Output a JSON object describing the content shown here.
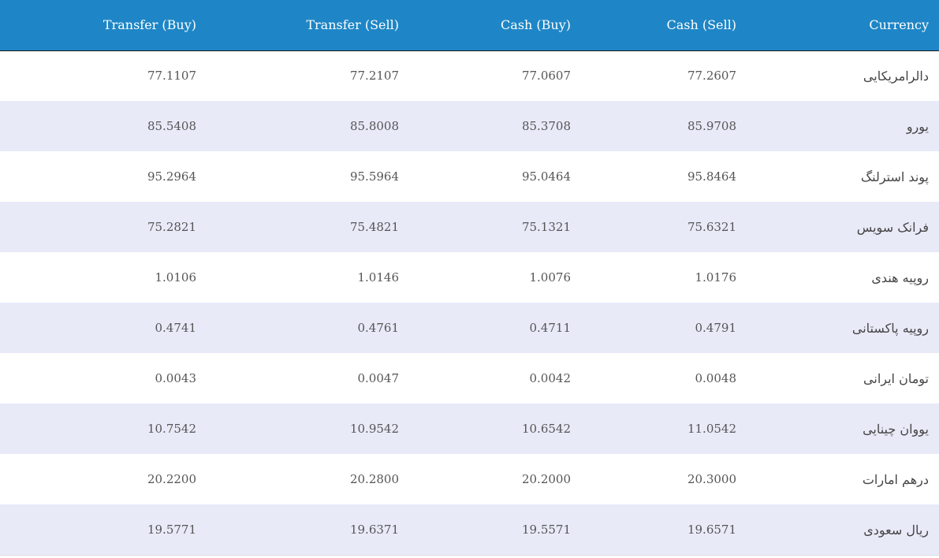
{
  "table": {
    "headers": {
      "transfer_buy": "Transfer (Buy)",
      "transfer_sell": "Transfer (Sell)",
      "cash_buy": "Cash (Buy)",
      "cash_sell": "Cash (Sell)",
      "currency": "Currency"
    },
    "colors": {
      "header_bg": "#1e86c6",
      "header_text": "#ffffff",
      "stripe_bg": "#e8eaf8"
    },
    "rows": [
      {
        "transfer_buy": "77.1107",
        "transfer_sell": "77.2107",
        "cash_buy": "77.0607",
        "cash_sell": "77.2607",
        "currency": "دالرامریکایی"
      },
      {
        "transfer_buy": "85.5408",
        "transfer_sell": "85.8008",
        "cash_buy": "85.3708",
        "cash_sell": "85.9708",
        "currency": "یورو"
      },
      {
        "transfer_buy": "95.2964",
        "transfer_sell": "95.5964",
        "cash_buy": "95.0464",
        "cash_sell": "95.8464",
        "currency": "پوند استرلنگ"
      },
      {
        "transfer_buy": "75.2821",
        "transfer_sell": "75.4821",
        "cash_buy": "75.1321",
        "cash_sell": "75.6321",
        "currency": "فرانک سویس"
      },
      {
        "transfer_buy": "1.0106",
        "transfer_sell": "1.0146",
        "cash_buy": "1.0076",
        "cash_sell": "1.0176",
        "currency": "روپیه هندی"
      },
      {
        "transfer_buy": "0.4741",
        "transfer_sell": "0.4761",
        "cash_buy": "0.4711",
        "cash_sell": "0.4791",
        "currency": "روپیه پاکستانی"
      },
      {
        "transfer_buy": "0.0043",
        "transfer_sell": "0.0047",
        "cash_buy": "0.0042",
        "cash_sell": "0.0048",
        "currency": "تومان ایرانی"
      },
      {
        "transfer_buy": "10.7542",
        "transfer_sell": "10.9542",
        "cash_buy": "10.6542",
        "cash_sell": "11.0542",
        "currency": "یووان چینایی"
      },
      {
        "transfer_buy": "20.2200",
        "transfer_sell": "20.2800",
        "cash_buy": "20.2000",
        "cash_sell": "20.3000",
        "currency": "درهم امارات"
      },
      {
        "transfer_buy": "19.5771",
        "transfer_sell": "19.6371",
        "cash_buy": "19.5571",
        "cash_sell": "19.6571",
        "currency": "ریال سعودی"
      }
    ]
  }
}
